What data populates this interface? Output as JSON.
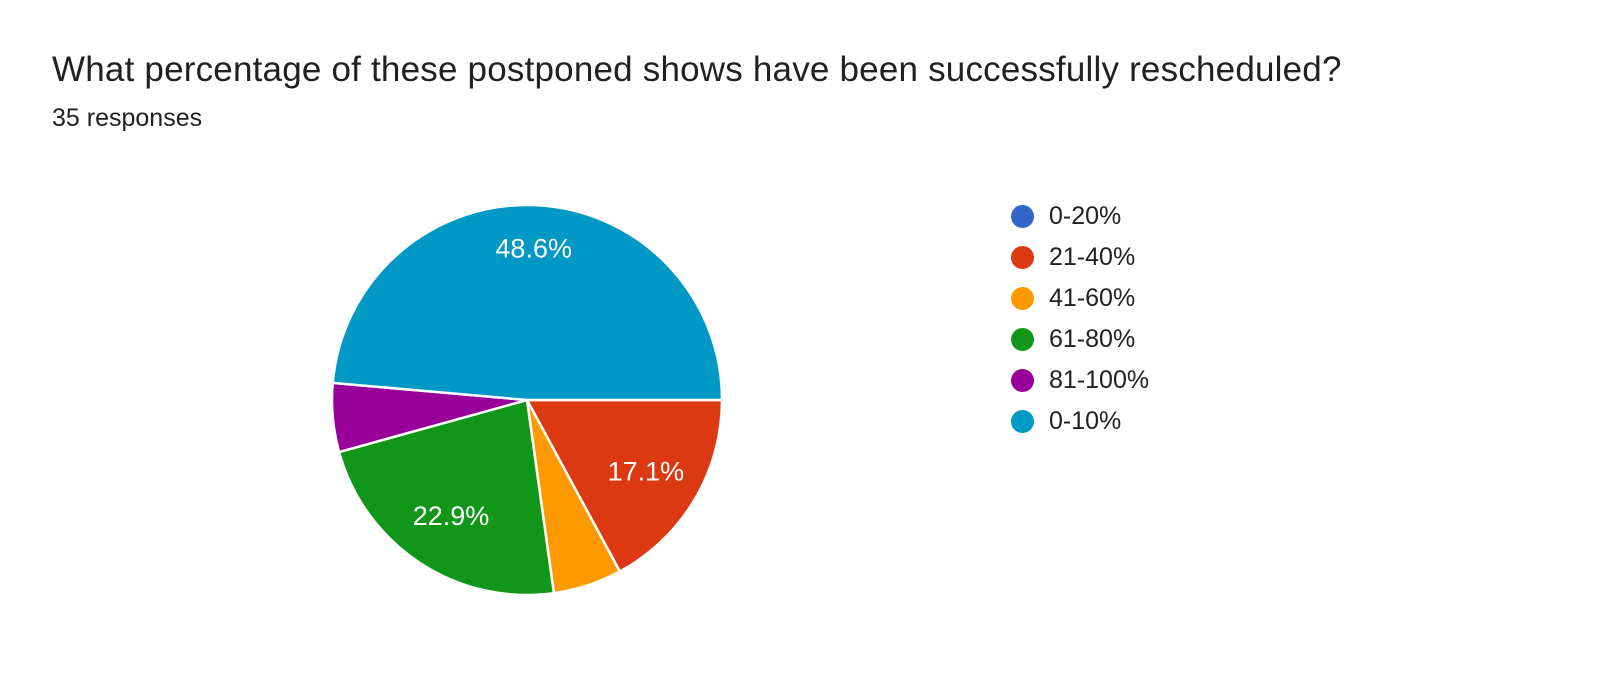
{
  "header": {
    "title": "What percentage of these postponed shows have been successfully rescheduled?",
    "subtitle": "35 responses"
  },
  "chart_data": {
    "type": "pie",
    "title": "What percentage of these postponed shows have been successfully rescheduled?",
    "subtitle": "35 responses",
    "total_responses": 35,
    "legend_position": "right",
    "background_color": "#ffffff",
    "slice_label_color": "#ffffff",
    "slices": [
      {
        "label": "21-40%",
        "percent": 17.1,
        "display_label": "17.1%",
        "color": "#dc3912"
      },
      {
        "label": "41-60%",
        "percent": 5.7,
        "display_label": "",
        "color": "#ff9900"
      },
      {
        "label": "61-80%",
        "percent": 22.9,
        "display_label": "22.9%",
        "color": "#109618"
      },
      {
        "label": "81-100%",
        "percent": 5.7,
        "display_label": "",
        "color": "#990099"
      },
      {
        "label": "0-10%",
        "percent": 48.6,
        "display_label": "48.6%",
        "color": "#0099c6"
      }
    ],
    "legend_items": [
      {
        "label": "0-20%",
        "color": "#3366cc"
      },
      {
        "label": "21-40%",
        "color": "#dc3912"
      },
      {
        "label": "41-60%",
        "color": "#ff9900"
      },
      {
        "label": "61-80%",
        "color": "#109618"
      },
      {
        "label": "81-100%",
        "color": "#990099"
      },
      {
        "label": "0-10%",
        "color": "#0099c6"
      }
    ]
  }
}
